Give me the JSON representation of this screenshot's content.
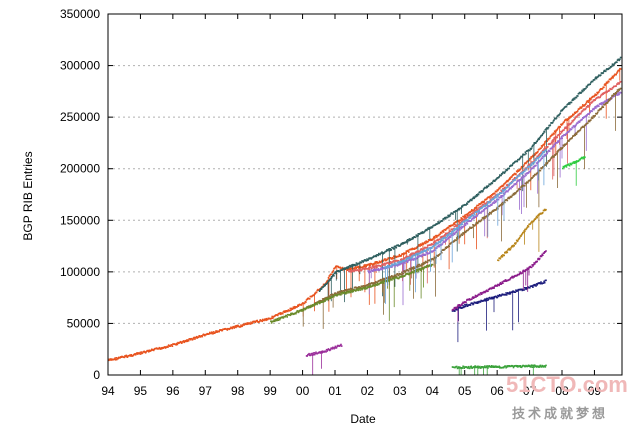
{
  "chart_data": {
    "type": "scatter",
    "title": "",
    "xlabel": "Date",
    "ylabel": "BGP RIB Entries",
    "xlim": [
      1994,
      2009.85
    ],
    "ylim": [
      0,
      350000
    ],
    "grid": true,
    "xticks": [
      "94",
      "95",
      "96",
      "97",
      "98",
      "99",
      "00",
      "01",
      "02",
      "03",
      "04",
      "05",
      "06",
      "07",
      "08",
      "09"
    ],
    "yticks": [
      0,
      50000,
      100000,
      150000,
      200000,
      250000,
      300000,
      350000
    ],
    "series": [
      {
        "color": "#e8531e",
        "x": [
          1994.0,
          1995.0,
          1996.0,
          1997.0,
          1998.0,
          1999.0,
          2000.0,
          2000.7,
          2001.0,
          2001.3,
          2002.0,
          2003.0,
          2004.0,
          2005.0,
          2006.0,
          2007.0,
          2008.0,
          2009.0,
          2009.8
        ],
        "y": [
          15000,
          22000,
          30000,
          40000,
          48000,
          56000,
          70000,
          90000,
          106000,
          103000,
          107000,
          117000,
          133000,
          155000,
          180000,
          210000,
          245000,
          272000,
          298000
        ]
      },
      {
        "color": "#2f5f5f",
        "x": [
          2000.5,
          2001.0,
          2002.0,
          2003.0,
          2004.0,
          2005.0,
          2006.0,
          2007.0,
          2008.0,
          2009.0,
          2009.8
        ],
        "y": [
          82000,
          100000,
          113000,
          127000,
          145000,
          166000,
          192000,
          220000,
          258000,
          288000,
          308000
        ]
      },
      {
        "color": "#e06060",
        "x": [
          2001.4,
          2002.0,
          2003.0,
          2004.0,
          2005.0,
          2006.0,
          2007.0,
          2008.0,
          2009.0,
          2009.8
        ],
        "y": [
          101000,
          104000,
          112000,
          128000,
          152000,
          176000,
          205000,
          238000,
          268000,
          285000
        ]
      },
      {
        "color": "#9a6ccf",
        "x": [
          2002.0,
          2003.0,
          2004.0,
          2005.0,
          2006.0,
          2007.0,
          2008.0,
          2009.0,
          2009.8
        ],
        "y": [
          101000,
          108000,
          121000,
          147000,
          171000,
          199000,
          232000,
          260000,
          275000
        ]
      },
      {
        "color": "#8b6b3a",
        "x": [
          2000.0,
          2001.0,
          2002.0,
          2003.0,
          2004.0,
          2005.0,
          2006.0,
          2007.0,
          2008.0,
          2009.0,
          2009.8
        ],
        "y": [
          64000,
          80000,
          88000,
          99000,
          113000,
          140000,
          163000,
          190000,
          222000,
          253000,
          280000
        ]
      },
      {
        "color": "#6a8a2a",
        "x": [
          1999.0,
          2000.0,
          2001.0,
          2002.0,
          2003.0,
          2004.0
        ],
        "y": [
          52000,
          64000,
          78000,
          86000,
          96000,
          108000
        ]
      },
      {
        "color": "#6aa3d8",
        "x": [
          2002.5,
          2003.0,
          2004.0,
          2005.0,
          2006.0,
          2007.0,
          2007.5
        ],
        "y": [
          105000,
          110000,
          125000,
          150000,
          175000,
          204000,
          220000
        ]
      },
      {
        "color": "#1c1c7c",
        "x": [
          2004.6,
          2005.0,
          2006.0,
          2007.0,
          2007.5
        ],
        "y": [
          63000,
          68000,
          77000,
          86000,
          92000
        ]
      },
      {
        "color": "#8b1c8b",
        "x": [
          2004.6,
          2005.0,
          2006.0,
          2007.0,
          2007.5
        ],
        "y": [
          64000,
          72000,
          88000,
          105000,
          121000
        ]
      },
      {
        "color": "#b8861b",
        "x": [
          2006.0,
          2006.5,
          2007.0,
          2007.5
        ],
        "y": [
          112000,
          127000,
          148000,
          162000
        ]
      },
      {
        "color": "#9a2e9a",
        "x": [
          2000.1,
          2000.6,
          2001.2
        ],
        "y": [
          20000,
          23000,
          30000
        ]
      },
      {
        "color": "#3aa23a",
        "x": [
          2004.6,
          2005.5,
          2006.5,
          2007.5
        ],
        "y": [
          8000,
          8500,
          9000,
          9500
        ]
      },
      {
        "color": "#2ecc40",
        "x": [
          2008.0,
          2008.4,
          2008.7
        ],
        "y": [
          202000,
          207000,
          213000
        ]
      }
    ]
  },
  "watermark": {
    "site": "51CTO.com",
    "tagline": "技术成就梦想"
  }
}
